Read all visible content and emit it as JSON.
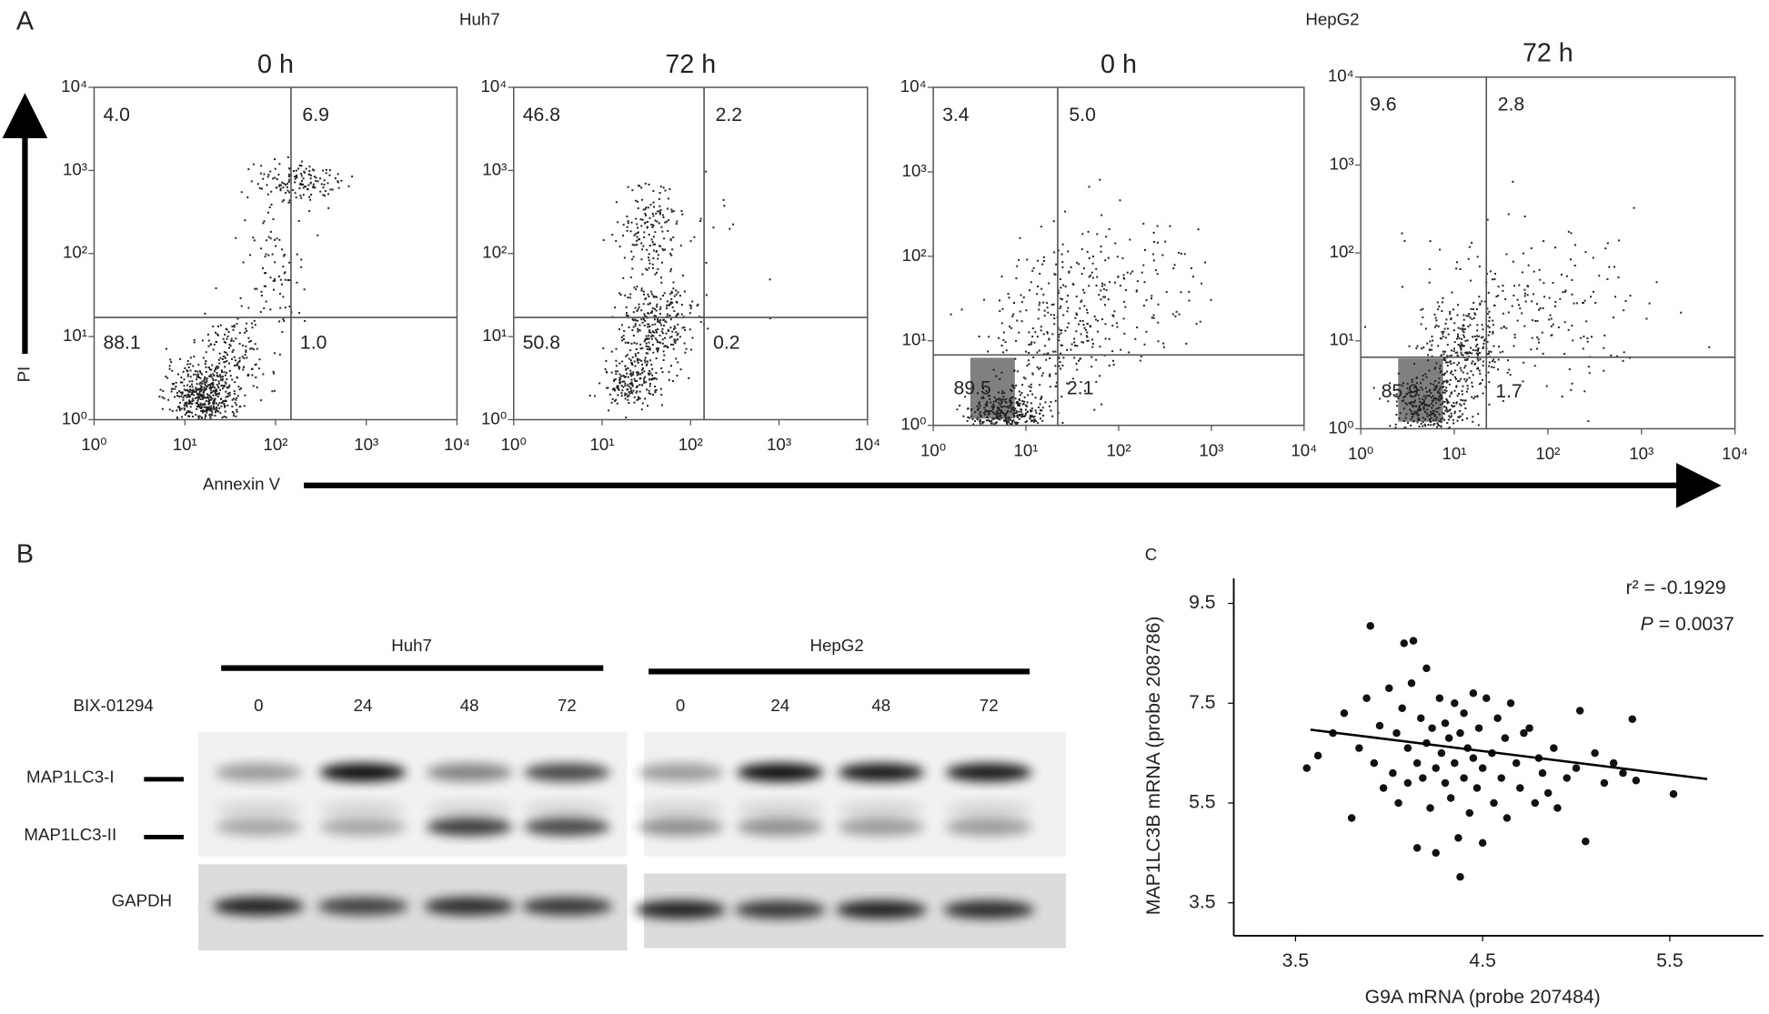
{
  "panel_a": {
    "label": "A",
    "groups": [
      "Huh7",
      "HepG2"
    ],
    "y_label": "PI",
    "x_label": "Annexin V"
  },
  "panel_b": {
    "label": "B",
    "groups": [
      "Huh7",
      "HepG2"
    ],
    "treatment": "BIX-01294",
    "lanes": [
      "0",
      "24",
      "48",
      "72",
      "0",
      "24",
      "48",
      "72"
    ],
    "rows": [
      "MAP1LC3-I",
      "MAP1LC3-II",
      "GAPDH"
    ]
  },
  "panel_c": {
    "label": "C",
    "r2": "r² = -0.1929",
    "p_symbol": "P",
    "p_value": " = 0.0037"
  },
  "chart_data": [
    {
      "type": "flow",
      "title": "0 h",
      "xlim": [
        1,
        10000
      ],
      "ylim": [
        1,
        10000
      ],
      "log_scale": true,
      "xticks": [
        {
          "value": 1,
          "label": "10⁰"
        },
        {
          "value": 10,
          "label": "10¹"
        },
        {
          "value": 100,
          "label": "10²"
        },
        {
          "value": 1000,
          "label": "10³"
        },
        {
          "value": 10000,
          "label": "10⁴"
        }
      ],
      "yticks": [
        {
          "value": 1,
          "label": "10⁰"
        },
        {
          "value": 10,
          "label": "10¹"
        },
        {
          "value": 100,
          "label": "10²"
        },
        {
          "value": 1000,
          "label": "10³"
        },
        {
          "value": 10000,
          "label": "10⁴"
        }
      ],
      "gate": {
        "x": 148,
        "y": 17
      },
      "quadrant_labels": [
        "4.0",
        "6.9",
        "88.1",
        "1.0"
      ]
    },
    {
      "type": "flow",
      "title": "72 h",
      "xlim": [
        1,
        10000
      ],
      "ylim": [
        1,
        10000
      ],
      "log_scale": true,
      "xticks": [
        {
          "value": 1,
          "label": "10⁰"
        },
        {
          "value": 10,
          "label": "10¹"
        },
        {
          "value": 100,
          "label": "10²"
        },
        {
          "value": 1000,
          "label": "10³"
        },
        {
          "value": 10000,
          "label": "10⁴"
        }
      ],
      "yticks": [
        {
          "value": 1,
          "label": "10⁰"
        },
        {
          "value": 10,
          "label": "10¹"
        },
        {
          "value": 100,
          "label": "10²"
        },
        {
          "value": 1000,
          "label": "10³"
        },
        {
          "value": 10000,
          "label": "10⁴"
        }
      ],
      "gate": {
        "x": 142,
        "y": 17
      },
      "quadrant_labels": [
        "46.8",
        "2.2",
        "50.8",
        "0.2"
      ]
    },
    {
      "type": "flow",
      "title": "0 h",
      "xlim": [
        1,
        10000
      ],
      "ylim": [
        1,
        10000
      ],
      "log_scale": true,
      "xticks": [
        {
          "value": 1,
          "label": "10⁰"
        },
        {
          "value": 10,
          "label": "10¹"
        },
        {
          "value": 100,
          "label": "10²"
        },
        {
          "value": 1000,
          "label": "10³"
        },
        {
          "value": 10000,
          "label": "10⁴"
        }
      ],
      "yticks": [
        {
          "value": 1,
          "label": "10⁰"
        },
        {
          "value": 10,
          "label": "10¹"
        },
        {
          "value": 100,
          "label": "10²"
        },
        {
          "value": 1000,
          "label": "10³"
        },
        {
          "value": 10000,
          "label": "10⁴"
        }
      ],
      "gate": {
        "x": 22,
        "y": 6.8
      },
      "quadrant_labels": [
        "3.4",
        "5.0",
        "89.5",
        "2.1"
      ]
    },
    {
      "type": "flow",
      "title": "72 h",
      "xlim": [
        1,
        10000
      ],
      "ylim": [
        1,
        10000
      ],
      "log_scale": true,
      "xticks": [
        {
          "value": 1,
          "label": "10⁰"
        },
        {
          "value": 10,
          "label": "10¹"
        },
        {
          "value": 100,
          "label": "10²"
        },
        {
          "value": 1000,
          "label": "10³"
        },
        {
          "value": 10000,
          "label": "10⁴"
        }
      ],
      "yticks": [
        {
          "value": 1,
          "label": "10⁰"
        },
        {
          "value": 10,
          "label": "10¹"
        },
        {
          "value": 100,
          "label": "10²"
        },
        {
          "value": 1000,
          "label": "10³"
        },
        {
          "value": 10000,
          "label": "10⁴"
        }
      ],
      "gate": {
        "x": 22,
        "y": 6.5
      },
      "quadrant_labels": [
        "9.6",
        "2.8",
        "85.9",
        "1.7"
      ]
    },
    {
      "type": "scatter",
      "x_label": "G9A mRNA (probe 207484)",
      "y_label": "MAP1LC3B mRNA (probe 208786)",
      "xlim": [
        3.17,
        6.0
      ],
      "ylim": [
        2.84,
        10.0
      ],
      "xticks": [
        3.5,
        4.5,
        5.5
      ],
      "yticks": [
        3.5,
        5.5,
        7.5,
        9.5
      ],
      "color": "#111111",
      "x": [
        3.56,
        3.62,
        3.7,
        3.76,
        3.8,
        3.84,
        3.88,
        3.9,
        3.92,
        3.95,
        3.97,
        4.0,
        4.02,
        4.04,
        4.05,
        4.07,
        4.08,
        4.1,
        4.1,
        4.12,
        4.13,
        4.15,
        4.15,
        4.17,
        4.18,
        4.2,
        4.2,
        4.22,
        4.23,
        4.25,
        4.25,
        4.27,
        4.28,
        4.3,
        4.3,
        4.32,
        4.33,
        4.35,
        4.35,
        4.37,
        4.38,
        4.38,
        4.4,
        4.4,
        4.42,
        4.43,
        4.45,
        4.45,
        4.47,
        4.48,
        4.5,
        4.5,
        4.52,
        4.55,
        4.56,
        4.58,
        4.6,
        4.62,
        4.63,
        4.65,
        4.68,
        4.7,
        4.72,
        4.75,
        4.78,
        4.8,
        4.82,
        4.85,
        4.88,
        4.9,
        4.95,
        5.0,
        5.02,
        5.05,
        5.1,
        5.15,
        5.2,
        5.25,
        5.3,
        5.32,
        5.52
      ],
      "y": [
        6.2,
        6.45,
        6.9,
        7.3,
        5.2,
        6.6,
        7.6,
        9.05,
        6.3,
        7.05,
        5.8,
        7.8,
        6.1,
        6.9,
        5.5,
        7.4,
        8.7,
        6.6,
        5.9,
        7.9,
        8.75,
        6.3,
        4.6,
        7.2,
        6.0,
        8.2,
        6.7,
        5.4,
        7.0,
        6.2,
        4.5,
        7.6,
        6.5,
        5.9,
        7.1,
        6.8,
        5.6,
        7.5,
        6.3,
        4.8,
        6.9,
        4.02,
        6.0,
        7.3,
        6.6,
        5.3,
        7.7,
        6.4,
        5.8,
        7.0,
        6.2,
        4.7,
        7.6,
        6.5,
        5.5,
        7.2,
        6.0,
        6.8,
        5.2,
        7.5,
        6.3,
        5.8,
        6.9,
        7.0,
        5.5,
        6.4,
        6.1,
        5.7,
        6.6,
        5.4,
        6.0,
        6.2,
        7.35,
        4.73,
        6.5,
        5.9,
        6.3,
        6.1,
        7.18,
        5.95,
        5.68
      ],
      "trend": {
        "x": [
          3.58,
          5.7
        ],
        "y": [
          6.97,
          5.98
        ]
      }
    }
  ]
}
